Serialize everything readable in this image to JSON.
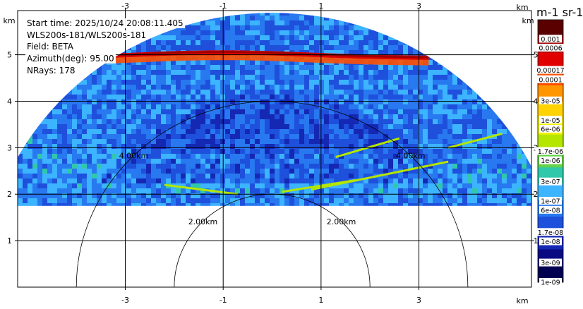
{
  "chart_data": {
    "type": "heatmap",
    "title": "",
    "x_unit": "km",
    "y_unit": "km",
    "xlim": [
      -5.2,
      5.3
    ],
    "ylim": [
      0,
      5.95
    ],
    "x_ticks": [
      "-3",
      "-1",
      "1",
      "3"
    ],
    "x_tick_values": [
      -3,
      -1,
      1,
      3
    ],
    "y_ticks": [
      "1",
      "2",
      "3",
      "4",
      "5"
    ],
    "y_tick_values": [
      1,
      2,
      3,
      4,
      5
    ],
    "grid": true,
    "range_rings": [
      {
        "radius_km": 2.0,
        "label": "2.00km"
      },
      {
        "radius_km": 4.0,
        "label": "4.00km"
      }
    ],
    "info": {
      "start_time": "Start time: 2025/10/24 20:08:11.405",
      "instrument": "WLS200s-181/WLS200s-181",
      "field": "Field: BETA",
      "azimuth": "Azimuth(deg): 95.00",
      "nrays": "NRays: 178"
    },
    "colorbar": {
      "title": "m-1 sr-1",
      "scale": "log",
      "range": [
        1e-09,
        0.003
      ],
      "tick_labels": [
        "0.001",
        "0.0006",
        "0.00017",
        "0.0001",
        "3e-05",
        "1e-05",
        "6e-06",
        "1.7e-06",
        "1e-06",
        "3e-07",
        "1e-07",
        "6e-08",
        "1.7e-08",
        "1e-08",
        "3e-09",
        "1e-09"
      ],
      "tick_values": [
        0.001,
        0.0006,
        0.00017,
        0.0001,
        3e-05,
        1e-05,
        6e-06,
        1.7e-06,
        1e-06,
        3e-07,
        1e-07,
        6e-08,
        1.7e-08,
        1e-08,
        3e-09,
        1e-09
      ],
      "colors": [
        "#5a0000",
        "#a00000",
        "#e00000",
        "#ff5000",
        "#ff9600",
        "#ffd200",
        "#f0f000",
        "#b4e600",
        "#64d24b",
        "#30c8aa",
        "#3cb4ff",
        "#2878f0",
        "#1e50dc",
        "#1428b4",
        "#0a0a82",
        "#000050"
      ]
    },
    "field_summary": {
      "scan_type": "RHI",
      "data_bottom_height_km": 1.75,
      "data_max_range_km": 5.9,
      "background_beta": 6e-08,
      "aerosol_layer_top_km": 5.0,
      "aerosol_layer_beta": 0.001
    }
  }
}
